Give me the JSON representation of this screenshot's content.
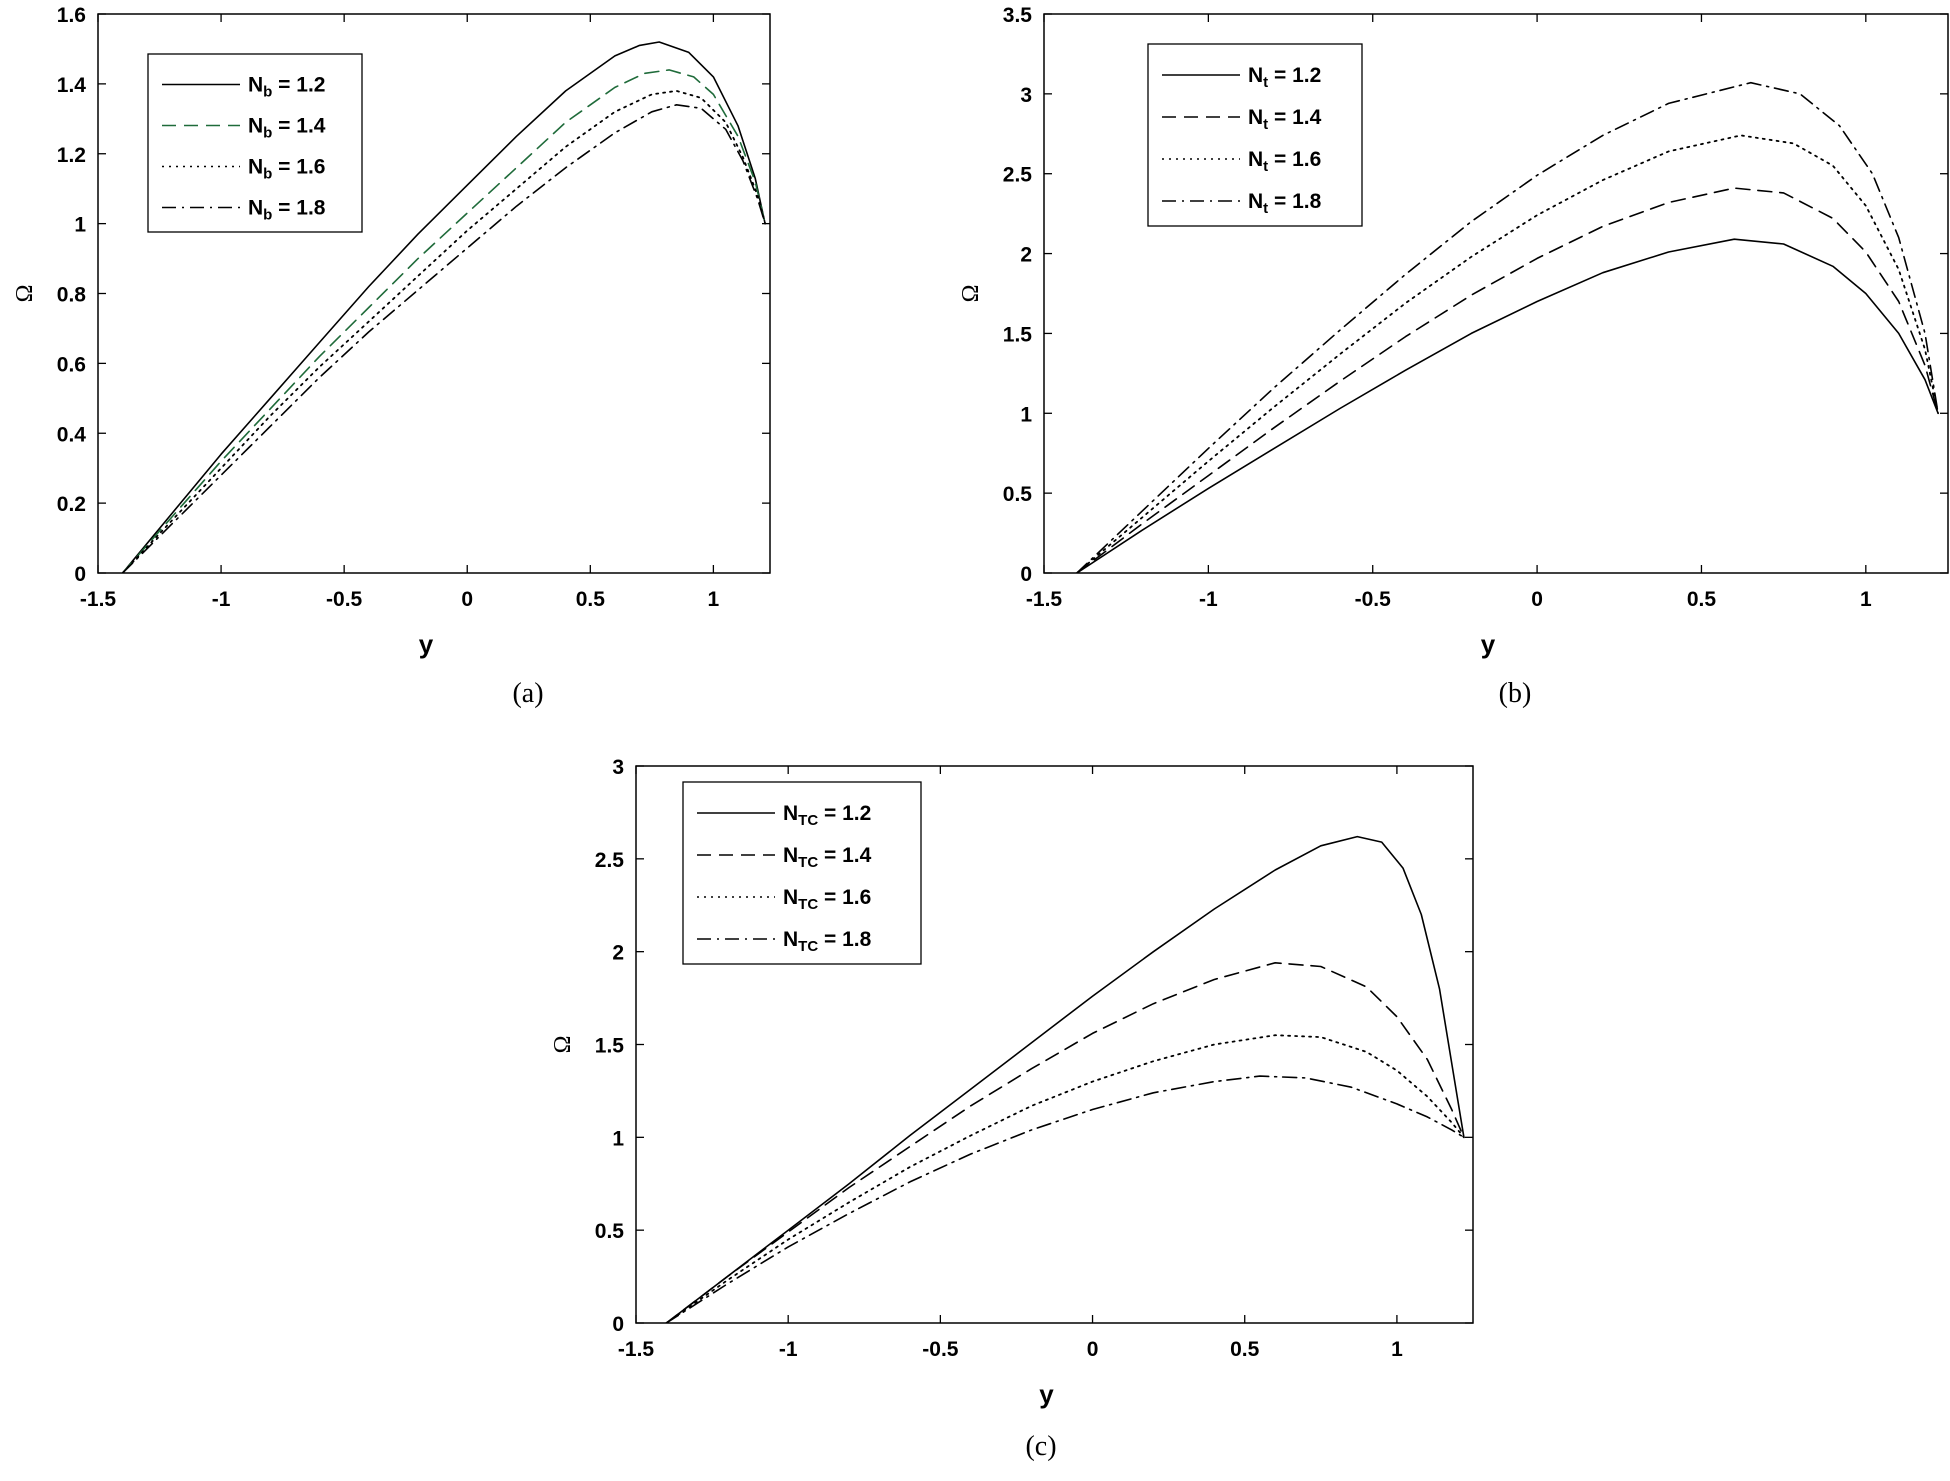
{
  "figure": {
    "panels": [
      "a",
      "b",
      "c"
    ]
  },
  "chart_data": [
    {
      "type": "line",
      "caption": "(a)",
      "xlabel": "y",
      "ylabel": "Ω",
      "xlim": [
        -1.5,
        1.23
      ],
      "ylim": [
        0,
        1.6
      ],
      "xticks": [
        "-1.5",
        "-1",
        "-0.5",
        "0",
        "0.5",
        "1"
      ],
      "yticks": [
        "0",
        "0.2",
        "0.4",
        "0.6",
        "0.8",
        "1",
        "1.2",
        "1.4",
        "1.6"
      ],
      "grid": false,
      "legend_position": "top-left",
      "series": [
        {
          "name": "Nb = 1.2",
          "name_base": "N",
          "name_sub": "b",
          "name_value": " = 1.2",
          "style": "solid",
          "color": "#000000",
          "x": [
            -1.4,
            -1.2,
            -1.0,
            -0.8,
            -0.6,
            -0.4,
            -0.2,
            0.0,
            0.2,
            0.4,
            0.6,
            0.7,
            0.78,
            0.9,
            1.0,
            1.1,
            1.17,
            1.21
          ],
          "y": [
            0.0,
            0.17,
            0.34,
            0.5,
            0.66,
            0.82,
            0.97,
            1.11,
            1.25,
            1.38,
            1.48,
            1.51,
            1.52,
            1.49,
            1.42,
            1.28,
            1.13,
            1.0
          ]
        },
        {
          "name": "Nb = 1.4",
          "name_base": "N",
          "name_sub": "b",
          "name_value": " = 1.4",
          "style": "dashed",
          "color": "#1f6b3a",
          "x": [
            -1.4,
            -1.2,
            -1.0,
            -0.8,
            -0.6,
            -0.4,
            -0.2,
            0.0,
            0.2,
            0.4,
            0.6,
            0.72,
            0.82,
            0.92,
            1.0,
            1.1,
            1.17,
            1.21
          ],
          "y": [
            0.0,
            0.16,
            0.32,
            0.47,
            0.62,
            0.76,
            0.9,
            1.03,
            1.16,
            1.29,
            1.39,
            1.43,
            1.44,
            1.42,
            1.37,
            1.25,
            1.12,
            1.0
          ]
        },
        {
          "name": "Nb = 1.6",
          "name_base": "N",
          "name_sub": "b",
          "name_value": " = 1.6",
          "style": "dotted",
          "color": "#000000",
          "x": [
            -1.4,
            -1.2,
            -1.0,
            -0.8,
            -0.6,
            -0.4,
            -0.2,
            0.0,
            0.2,
            0.4,
            0.6,
            0.75,
            0.85,
            0.95,
            1.05,
            1.12,
            1.18,
            1.21
          ],
          "y": [
            0.0,
            0.15,
            0.3,
            0.45,
            0.59,
            0.72,
            0.85,
            0.98,
            1.1,
            1.22,
            1.32,
            1.37,
            1.38,
            1.36,
            1.29,
            1.19,
            1.08,
            1.0
          ]
        },
        {
          "name": "Nb = 1.8",
          "name_base": "N",
          "name_sub": "b",
          "name_value": " = 1.8",
          "style": "dashdot",
          "color": "#000000",
          "x": [
            -1.4,
            -1.2,
            -1.0,
            -0.8,
            -0.6,
            -0.4,
            -0.2,
            0.0,
            0.2,
            0.4,
            0.6,
            0.75,
            0.85,
            0.95,
            1.05,
            1.12,
            1.18,
            1.21
          ],
          "y": [
            0.0,
            0.14,
            0.28,
            0.42,
            0.56,
            0.69,
            0.81,
            0.93,
            1.05,
            1.16,
            1.26,
            1.32,
            1.34,
            1.33,
            1.27,
            1.18,
            1.07,
            1.0
          ]
        }
      ]
    },
    {
      "type": "line",
      "caption": "(b)",
      "xlabel": "y",
      "ylabel": "Ω",
      "xlim": [
        -1.5,
        1.25
      ],
      "ylim": [
        0,
        3.5
      ],
      "xticks": [
        "-1.5",
        "-1",
        "-0.5",
        "0",
        "0.5",
        "1"
      ],
      "yticks": [
        "0",
        "0.5",
        "1",
        "1.5",
        "2",
        "2.5",
        "3",
        "3.5"
      ],
      "grid": false,
      "legend_position": "top-left",
      "series": [
        {
          "name": "Nt = 1.2",
          "name_base": "N",
          "name_sub": "t",
          "name_value": " = 1.2",
          "style": "solid",
          "color": "#000000",
          "x": [
            -1.4,
            -1.2,
            -1.0,
            -0.8,
            -0.6,
            -0.4,
            -0.2,
            0.0,
            0.2,
            0.4,
            0.6,
            0.75,
            0.9,
            1.0,
            1.1,
            1.18,
            1.22
          ],
          "y": [
            0.0,
            0.27,
            0.53,
            0.78,
            1.03,
            1.27,
            1.5,
            1.7,
            1.88,
            2.01,
            2.09,
            2.06,
            1.92,
            1.75,
            1.5,
            1.21,
            1.0
          ]
        },
        {
          "name": "Nt = 1.4",
          "name_base": "N",
          "name_sub": "t",
          "name_value": " = 1.4",
          "style": "dashed",
          "color": "#000000",
          "x": [
            -1.4,
            -1.2,
            -1.0,
            -0.8,
            -0.6,
            -0.4,
            -0.2,
            0.0,
            0.2,
            0.4,
            0.6,
            0.75,
            0.9,
            1.0,
            1.1,
            1.18,
            1.22
          ],
          "y": [
            0.0,
            0.31,
            0.61,
            0.91,
            1.2,
            1.48,
            1.74,
            1.97,
            2.17,
            2.32,
            2.41,
            2.38,
            2.22,
            2.01,
            1.7,
            1.3,
            1.0
          ]
        },
        {
          "name": "Nt = 1.6",
          "name_base": "N",
          "name_sub": "t",
          "name_value": " = 1.6",
          "style": "dotted",
          "color": "#000000",
          "x": [
            -1.4,
            -1.2,
            -1.0,
            -0.8,
            -0.6,
            -0.4,
            -0.2,
            0.0,
            0.2,
            0.4,
            0.62,
            0.78,
            0.9,
            1.0,
            1.1,
            1.18,
            1.22
          ],
          "y": [
            0.0,
            0.35,
            0.7,
            1.04,
            1.37,
            1.69,
            1.98,
            2.24,
            2.46,
            2.64,
            2.74,
            2.69,
            2.55,
            2.3,
            1.9,
            1.4,
            1.0
          ]
        },
        {
          "name": "Nt = 1.8",
          "name_base": "N",
          "name_sub": "t",
          "name_value": " = 1.8",
          "style": "dashdot",
          "color": "#000000",
          "x": [
            -1.4,
            -1.2,
            -1.0,
            -0.8,
            -0.6,
            -0.4,
            -0.2,
            0.0,
            0.2,
            0.4,
            0.65,
            0.8,
            0.92,
            1.02,
            1.1,
            1.18,
            1.22
          ],
          "y": [
            0.0,
            0.39,
            0.78,
            1.16,
            1.52,
            1.87,
            2.2,
            2.49,
            2.74,
            2.94,
            3.07,
            3.0,
            2.8,
            2.5,
            2.1,
            1.5,
            1.0
          ]
        }
      ]
    },
    {
      "type": "line",
      "caption": "(c)",
      "xlabel": "y",
      "ylabel": "Ω",
      "xlim": [
        -1.5,
        1.25
      ],
      "ylim": [
        0,
        3
      ],
      "xticks": [
        "-1.5",
        "-1",
        "-0.5",
        "0",
        "0.5",
        "1"
      ],
      "yticks": [
        "0",
        "0.5",
        "1",
        "1.5",
        "2",
        "2.5",
        "3"
      ],
      "grid": false,
      "legend_position": "top-left",
      "series": [
        {
          "name": "NTC = 1.2",
          "name_base": "N",
          "name_sub": "TC",
          "name_value": " = 1.2",
          "style": "solid",
          "color": "#000000",
          "x": [
            -1.4,
            -1.2,
            -1.0,
            -0.8,
            -0.6,
            -0.4,
            -0.2,
            0.0,
            0.2,
            0.4,
            0.6,
            0.75,
            0.87,
            0.95,
            1.02,
            1.08,
            1.14,
            1.2,
            1.22
          ],
          "y": [
            0.0,
            0.25,
            0.5,
            0.75,
            1.01,
            1.26,
            1.51,
            1.76,
            2.0,
            2.23,
            2.44,
            2.57,
            2.62,
            2.59,
            2.45,
            2.2,
            1.8,
            1.2,
            1.0
          ]
        },
        {
          "name": "NTC = 1.4",
          "name_base": "N",
          "name_sub": "TC",
          "name_value": " = 1.4",
          "style": "dashed",
          "color": "#000000",
          "x": [
            -1.4,
            -1.2,
            -1.0,
            -0.8,
            -0.6,
            -0.4,
            -0.2,
            0.0,
            0.2,
            0.4,
            0.6,
            0.75,
            0.9,
            1.0,
            1.1,
            1.18,
            1.22
          ],
          "y": [
            0.0,
            0.25,
            0.49,
            0.73,
            0.95,
            1.17,
            1.37,
            1.56,
            1.72,
            1.85,
            1.94,
            1.92,
            1.81,
            1.65,
            1.42,
            1.15,
            1.0
          ]
        },
        {
          "name": "NTC = 1.6",
          "name_base": "N",
          "name_sub": "TC",
          "name_value": " = 1.6",
          "style": "dotted",
          "color": "#000000",
          "x": [
            -1.4,
            -1.2,
            -1.0,
            -0.8,
            -0.6,
            -0.4,
            -0.2,
            0.0,
            0.2,
            0.4,
            0.6,
            0.75,
            0.9,
            1.0,
            1.1,
            1.18,
            1.22
          ],
          "y": [
            0.0,
            0.23,
            0.45,
            0.65,
            0.84,
            1.01,
            1.17,
            1.3,
            1.41,
            1.5,
            1.55,
            1.54,
            1.46,
            1.36,
            1.22,
            1.08,
            1.0
          ]
        },
        {
          "name": "NTC = 1.8",
          "name_base": "N",
          "name_sub": "TC",
          "name_value": " = 1.8",
          "style": "dashdot",
          "color": "#000000",
          "x": [
            -1.4,
            -1.2,
            -1.0,
            -0.8,
            -0.6,
            -0.4,
            -0.2,
            0.0,
            0.2,
            0.4,
            0.55,
            0.7,
            0.85,
            1.0,
            1.1,
            1.18,
            1.22
          ],
          "y": [
            0.0,
            0.21,
            0.41,
            0.59,
            0.76,
            0.91,
            1.04,
            1.15,
            1.24,
            1.3,
            1.33,
            1.32,
            1.27,
            1.18,
            1.11,
            1.04,
            1.0
          ]
        }
      ]
    }
  ]
}
